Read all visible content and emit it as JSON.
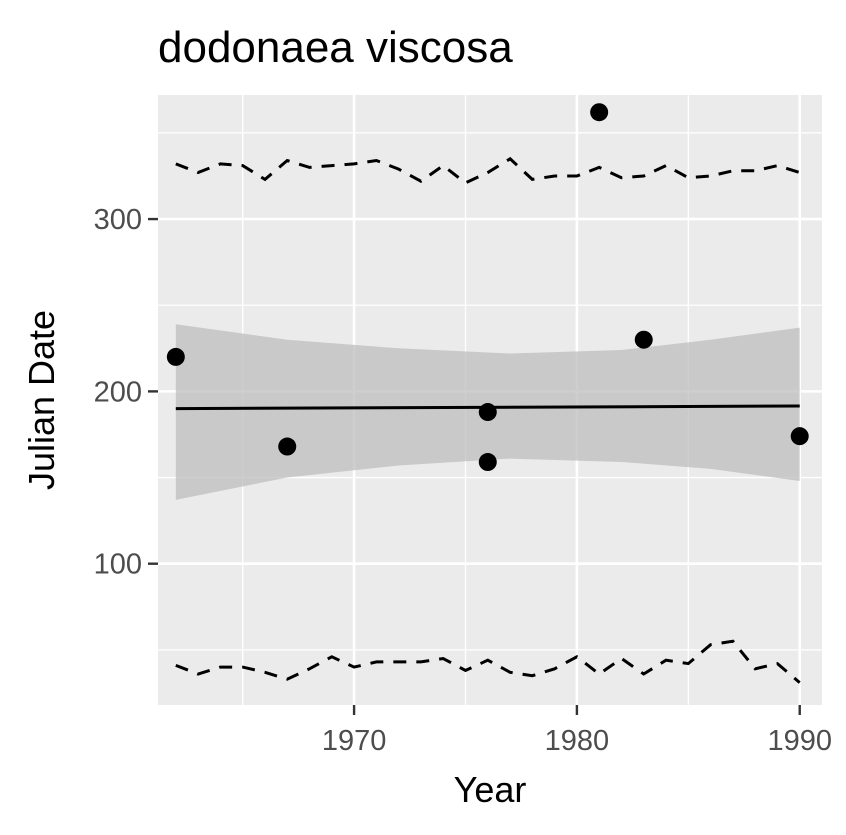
{
  "chart_data": {
    "type": "scatter",
    "title": "dodonaea viscosa",
    "xlabel": "Year",
    "ylabel": "Julian Date",
    "xlim": [
      1961.2,
      1991.0
    ],
    "ylim": [
      18,
      372
    ],
    "x_ticks": [
      1970,
      1980,
      1990
    ],
    "y_ticks": [
      100,
      200,
      300
    ],
    "x_tick_labels": [
      "1970",
      "1980",
      "1990"
    ],
    "y_tick_labels": [
      "100",
      "200",
      "300"
    ],
    "grid": true,
    "background": "#ebebeb",
    "points": [
      {
        "x": 1962,
        "y": 220
      },
      {
        "x": 1967,
        "y": 168
      },
      {
        "x": 1976,
        "y": 188
      },
      {
        "x": 1976,
        "y": 159
      },
      {
        "x": 1981,
        "y": 362
      },
      {
        "x": 1983,
        "y": 230
      },
      {
        "x": 1990,
        "y": 174
      }
    ],
    "trend_line": {
      "x": [
        1962,
        1990
      ],
      "y": [
        190,
        191.5
      ]
    },
    "confidence_band": {
      "x": [
        1962,
        1967,
        1972,
        1977,
        1982,
        1986,
        1990
      ],
      "upper": [
        239,
        230,
        225,
        222,
        224,
        230,
        237
      ],
      "lower": [
        137,
        150,
        157,
        161,
        159,
        155,
        148
      ]
    },
    "upper_dashed": {
      "x": [
        1962,
        1963,
        1964,
        1965,
        1966,
        1967,
        1968,
        1969,
        1970,
        1971,
        1972,
        1973,
        1974,
        1975,
        1976,
        1977,
        1978,
        1979,
        1980,
        1981,
        1982,
        1983,
        1984,
        1985,
        1986,
        1987,
        1988,
        1989,
        1990
      ],
      "y": [
        332,
        327,
        332,
        331,
        323,
        334,
        330,
        331,
        332,
        334,
        329,
        322,
        331,
        321,
        327,
        335,
        323,
        325,
        325,
        330,
        324,
        325,
        331,
        324,
        325,
        328,
        328,
        331,
        327
      ]
    },
    "lower_dashed": {
      "x": [
        1962,
        1963,
        1964,
        1965,
        1966,
        1967,
        1968,
        1969,
        1970,
        1971,
        1972,
        1973,
        1974,
        1975,
        1976,
        1977,
        1978,
        1979,
        1980,
        1981,
        1982,
        1983,
        1984,
        1985,
        1986,
        1987,
        1988,
        1989,
        1990
      ],
      "y": [
        41,
        36,
        40,
        40,
        37,
        33,
        39,
        46,
        40,
        43,
        43,
        43,
        45,
        38,
        44,
        37,
        35,
        39,
        46,
        36,
        45,
        36,
        44,
        42,
        53,
        55,
        39,
        42,
        31
      ]
    },
    "colors": {
      "points": "#000000",
      "trend_line": "#000000",
      "band": "#bdbdbd",
      "dashed": "#000000",
      "grid": "#ffffff"
    }
  }
}
